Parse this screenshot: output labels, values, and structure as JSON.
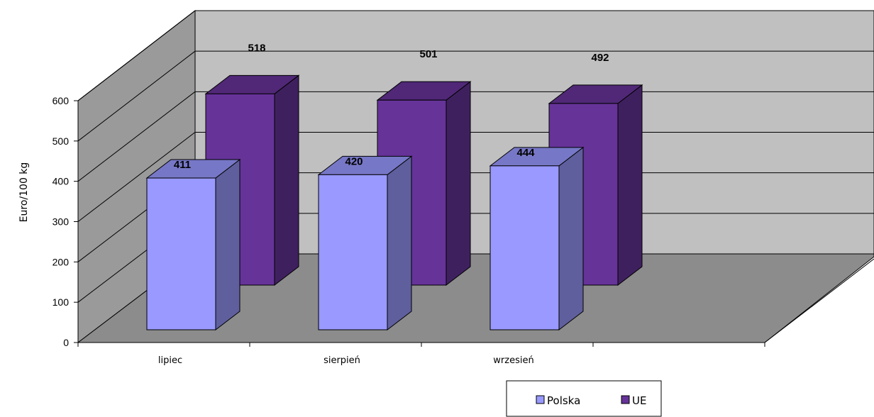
{
  "chart_data": {
    "type": "bar",
    "title": "",
    "xlabel": "",
    "ylabel": "Euro/100 kg",
    "ylim": [
      0,
      600
    ],
    "y_ticks": [
      "0",
      "100",
      "200",
      "300",
      "400",
      "500",
      "600"
    ],
    "categories": [
      "lipiec",
      "sierpień",
      "wrzesień"
    ],
    "series": [
      {
        "name": "Polska",
        "values": [
          411,
          420,
          444
        ],
        "color": "#9999ff"
      },
      {
        "name": "UE",
        "values": [
          518,
          501,
          492
        ],
        "color": "#663399"
      }
    ],
    "grid": true,
    "legend_position": "bottom-right",
    "style": "3d-clustered"
  }
}
